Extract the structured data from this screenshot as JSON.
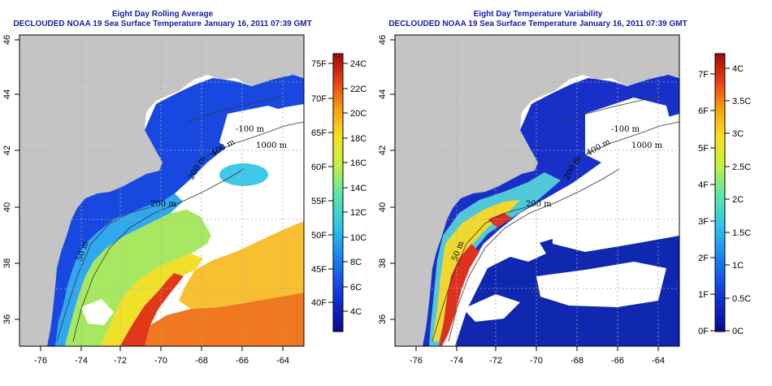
{
  "panels": [
    {
      "title_line1": "Eight Day Rolling Average",
      "title_line2": "DECLOUDED NOAA 19 Sea Surface Temperature January 16, 2011 07:39 GMT",
      "colorbar_left": [
        "75F",
        "70F",
        "65F",
        "60F",
        "55F",
        "50F",
        "45F",
        "40F"
      ],
      "colorbar_right": [
        "24C",
        "22C",
        "20C",
        "18C",
        "16C",
        "14C",
        "12C",
        "10C",
        "8C",
        "6C",
        "4C"
      ],
      "contours": [
        "-100 m",
        "1000 m",
        "400 m",
        "200 m",
        "200 m",
        "50 m"
      ]
    },
    {
      "title_line1": "Eight Day Temperature Variability",
      "title_line2": "DECLOUDED NOAA 19 Sea Surface Temperature January 16, 2011 07:39 GMT",
      "colorbar_left": [
        "7F",
        "6F",
        "5F",
        "4F",
        "3F",
        "2F",
        "1F",
        "0F"
      ],
      "colorbar_right": [
        "4C",
        "3.5C",
        "3C",
        "2.5C",
        "2C",
        "1.5C",
        "1C",
        "0.5C",
        "0C"
      ],
      "contours": [
        "-100 m",
        "1000 m",
        "400 m",
        "200 m",
        "200 m",
        "50 m"
      ]
    }
  ],
  "lon_ticks": [
    "-76",
    "-74",
    "-72",
    "-70",
    "-68",
    "-66",
    "-64"
  ],
  "lat_ticks": [
    "46",
    "44",
    "42",
    "40",
    "38",
    "36"
  ],
  "colors": {
    "title": "#1a1aa6",
    "land": "#c4c4c4",
    "grid": "#aaaaaa"
  }
}
